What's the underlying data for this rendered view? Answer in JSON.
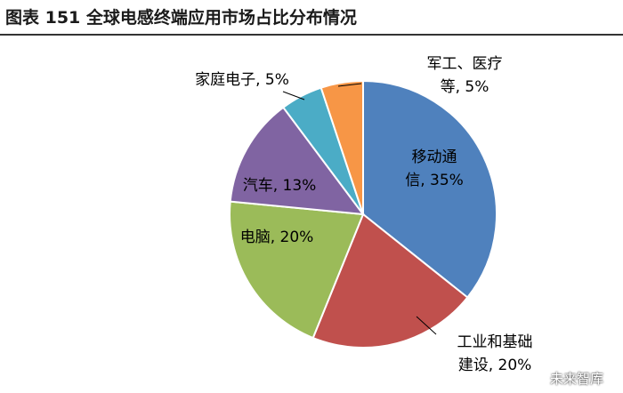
{
  "title": "图表 151 全球电感终端应用市场占比分布情况",
  "watermark": "未来智库",
  "chart_data": {
    "type": "pie",
    "title": "图表 151 全球电感终端应用市场占比分布情况",
    "unit": "%",
    "start_angle_deg": 0,
    "direction": "clockwise",
    "slices": [
      {
        "label_lines": [
          "移动通",
          "信, 35%"
        ],
        "value": 35,
        "color": "#4F81BD"
      },
      {
        "label_lines": [
          "工业和基础",
          "建设, 20%"
        ],
        "value": 20,
        "color": "#C0504D"
      },
      {
        "label_lines": [
          "电脑, 20%"
        ],
        "value": 20,
        "color": "#9BBB59"
      },
      {
        "label_lines": [
          "汽车, 13%"
        ],
        "value": 13,
        "color": "#8064A2"
      },
      {
        "label_lines": [
          "家庭电子, 5%"
        ],
        "value": 5,
        "color": "#4BACC6"
      },
      {
        "label_lines": [
          "军工、医疗",
          "等, 5%"
        ],
        "value": 5,
        "color": "#F79646"
      }
    ]
  }
}
